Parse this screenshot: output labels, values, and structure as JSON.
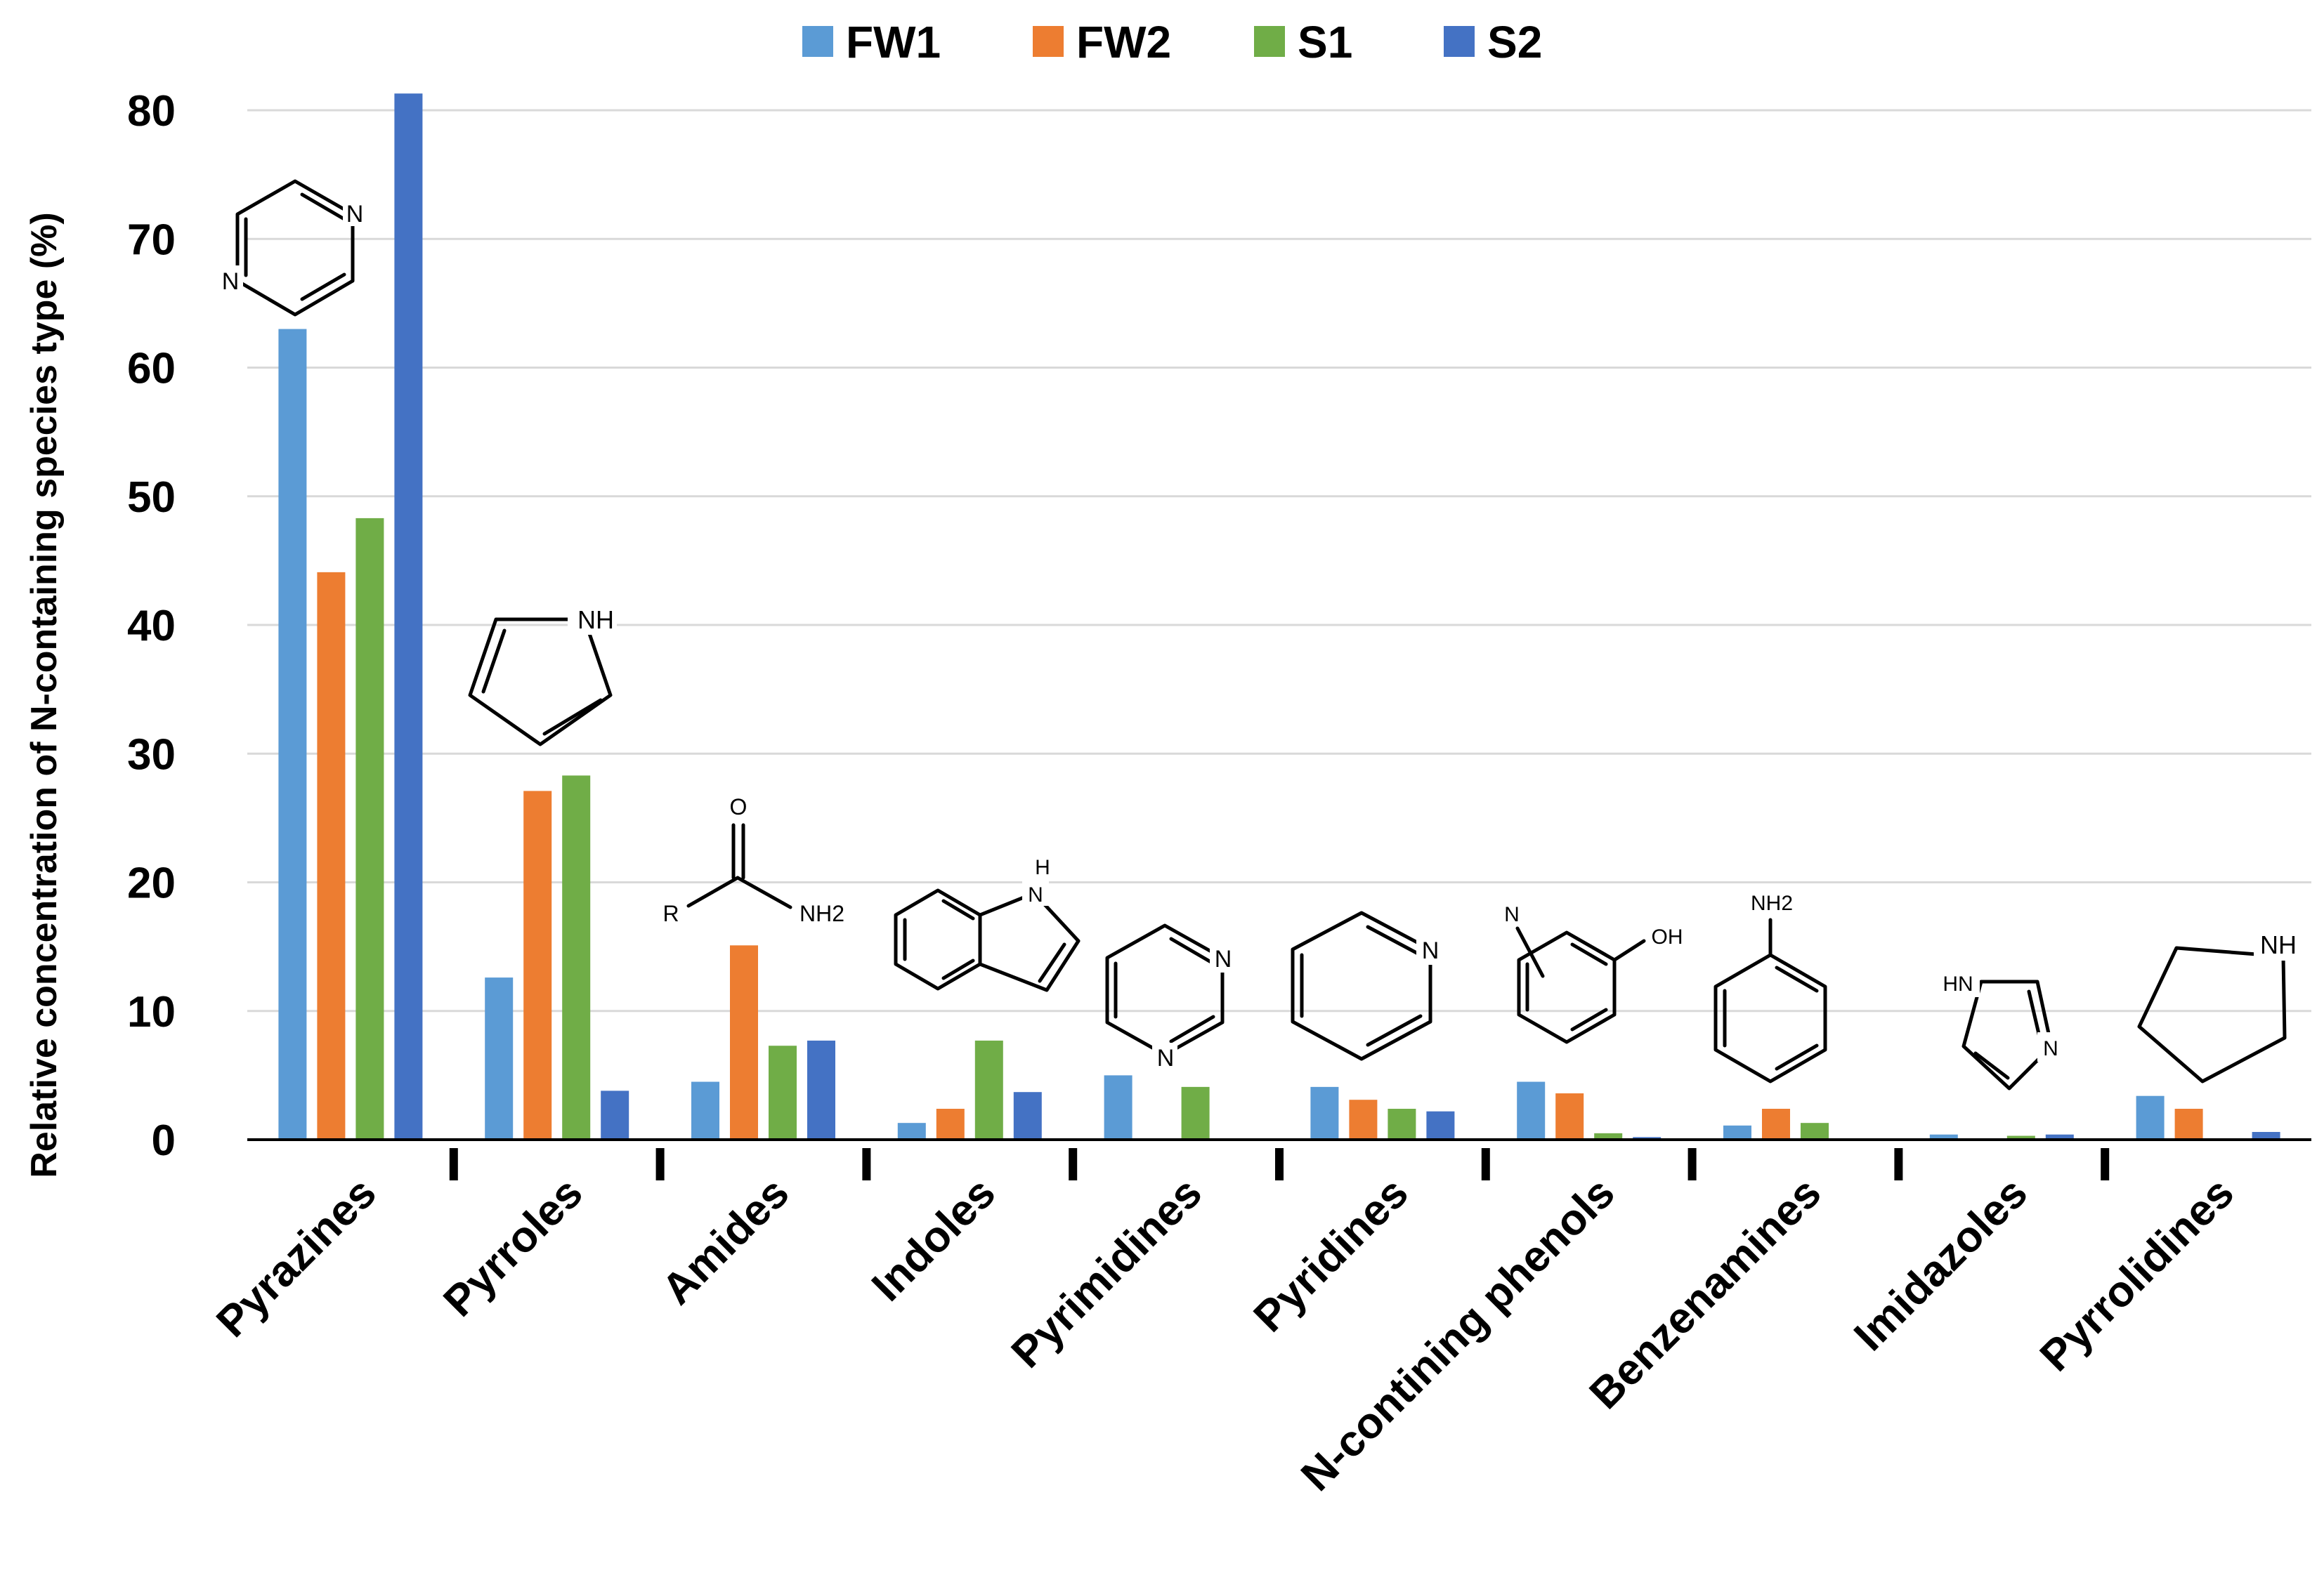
{
  "chart_data": {
    "type": "bar",
    "ylabel": "Relative concentration of N-containing species type (%)",
    "xlabel": "",
    "ylim": [
      0,
      80
    ],
    "yticks": [
      0,
      10,
      20,
      30,
      40,
      50,
      60,
      70,
      80
    ],
    "grid": true,
    "legend_position": "top-center",
    "categories": [
      "Pyrazines",
      "Pyrroles",
      "Amides",
      "Indoles",
      "Pyrimidines",
      "Pyridines",
      "N-contining phenols",
      "Benzenamines",
      "Imidazoles",
      "Pyrrolidines"
    ],
    "series": [
      {
        "name": "FW1",
        "color": "#5b9bd5",
        "values": [
          63.0,
          12.6,
          4.5,
          1.3,
          5.0,
          4.1,
          4.5,
          1.1,
          0.4,
          3.4
        ]
      },
      {
        "name": "FW2",
        "color": "#ed7d31",
        "values": [
          44.1,
          27.1,
          15.1,
          2.4,
          0.0,
          3.1,
          3.6,
          2.4,
          0.0,
          2.4
        ]
      },
      {
        "name": "S1",
        "color": "#70ad47",
        "values": [
          48.3,
          28.3,
          7.3,
          7.7,
          4.1,
          2.4,
          0.5,
          1.3,
          0.3,
          0.0
        ]
      },
      {
        "name": "S2",
        "color": "#4472c4",
        "values": [
          81.3,
          3.8,
          7.7,
          3.7,
          0.0,
          2.2,
          0.2,
          0.0,
          0.4,
          0.6
        ]
      }
    ],
    "structure_labels": {
      "pyrazine": [
        "N",
        "N"
      ],
      "pyrrole": [
        "NH"
      ],
      "amide": [
        "O",
        "R",
        "NH2"
      ],
      "indole": [
        "H",
        "N"
      ],
      "pyrimidine": [
        "N",
        "N"
      ],
      "pyridine": [
        "N"
      ],
      "phenol": [
        "N",
        "OH"
      ],
      "benzenamine": [
        "NH2"
      ],
      "imidazole": [
        "HN",
        "N"
      ],
      "pyrrolidine": [
        "NH"
      ]
    }
  }
}
